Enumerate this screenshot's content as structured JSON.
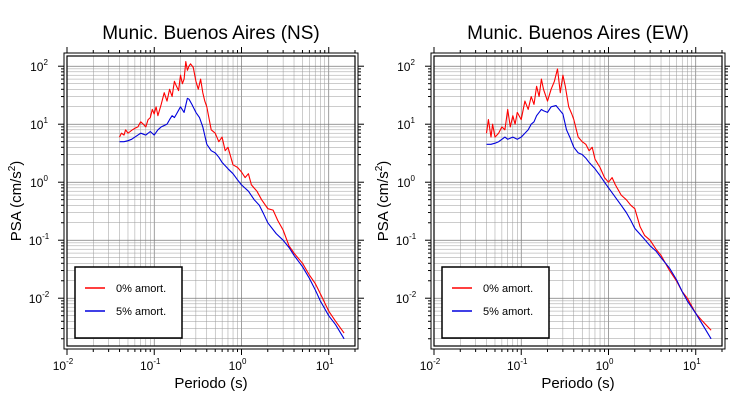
{
  "chart_data": [
    {
      "type": "line",
      "title": "Munic. Buenos Aires (NS)",
      "xlabel": "Periodo (s)",
      "ylabel": "PSA (cm/s",
      "ylabel_sup": "2",
      "ylabel_close": ")",
      "xscale": "log",
      "yscale": "log",
      "xlim": [
        0.01,
        20
      ],
      "ylim": [
        0.0015,
        150
      ],
      "x_ticks": [
        {
          "base": "10",
          "exp": "-2"
        },
        {
          "base": "10",
          "exp": "-1"
        },
        {
          "base": "10",
          "exp": "0"
        },
        {
          "base": "10",
          "exp": "1"
        }
      ],
      "y_ticks": [
        {
          "base": "10",
          "exp": "-2"
        },
        {
          "base": "10",
          "exp": "-1"
        },
        {
          "base": "10",
          "exp": "0"
        },
        {
          "base": "10",
          "exp": "1"
        },
        {
          "base": "10",
          "exp": "2"
        }
      ],
      "grid": true,
      "legend_position": "bottom-left",
      "series": [
        {
          "name": "0% amort.",
          "color": "#ff0000",
          "x": [
            0.04,
            0.042,
            0.045,
            0.047,
            0.05,
            0.053,
            0.056,
            0.06,
            0.065,
            0.07,
            0.075,
            0.08,
            0.085,
            0.09,
            0.095,
            0.1,
            0.105,
            0.11,
            0.12,
            0.13,
            0.14,
            0.15,
            0.16,
            0.17,
            0.18,
            0.19,
            0.2,
            0.21,
            0.22,
            0.23,
            0.24,
            0.25,
            0.26,
            0.28,
            0.3,
            0.32,
            0.34,
            0.36,
            0.38,
            0.4,
            0.45,
            0.5,
            0.55,
            0.6,
            0.65,
            0.7,
            0.8,
            0.9,
            1.0,
            1.1,
            1.2,
            1.3,
            1.5,
            1.7,
            2.0,
            2.3,
            2.6,
            3.0,
            3.5,
            4.0,
            5.0,
            6.0,
            7.0,
            8.0,
            10.0,
            12.0,
            15.0
          ],
          "y": [
            6,
            7,
            6.5,
            8,
            7,
            7.5,
            8,
            8.5,
            9,
            11,
            10,
            9,
            12,
            13,
            18,
            15,
            20,
            14,
            22,
            35,
            25,
            40,
            30,
            55,
            45,
            38,
            70,
            50,
            60,
            120,
            85,
            100,
            110,
            95,
            55,
            40,
            60,
            35,
            25,
            20,
            8,
            7,
            5,
            6,
            3.5,
            4,
            2,
            1.8,
            1.5,
            1.2,
            1.4,
            0.9,
            0.7,
            0.5,
            0.35,
            0.33,
            0.22,
            0.15,
            0.08,
            0.06,
            0.04,
            0.025,
            0.018,
            0.012,
            0.006,
            0.004,
            0.0025
          ]
        },
        {
          "name": "5% amort.",
          "color": "#0000dd",
          "x": [
            0.04,
            0.045,
            0.05,
            0.055,
            0.06,
            0.065,
            0.07,
            0.08,
            0.09,
            0.1,
            0.11,
            0.12,
            0.13,
            0.14,
            0.15,
            0.16,
            0.17,
            0.18,
            0.2,
            0.22,
            0.24,
            0.25,
            0.27,
            0.3,
            0.33,
            0.36,
            0.4,
            0.45,
            0.5,
            0.55,
            0.6,
            0.7,
            0.8,
            0.9,
            1.0,
            1.2,
            1.4,
            1.6,
            1.8,
            2.0,
            2.5,
            3.0,
            3.5,
            4.0,
            5.0,
            6.0,
            7.0,
            8.0,
            10.0,
            12.0,
            15.0
          ],
          "y": [
            5,
            5,
            5.2,
            5.5,
            6,
            6.5,
            7,
            6.5,
            7.5,
            6.5,
            8,
            9,
            9.5,
            10,
            12,
            14,
            13,
            15,
            20,
            16,
            28,
            27,
            22,
            16,
            13,
            9,
            4.5,
            3.5,
            3.2,
            2.7,
            2.2,
            1.7,
            1.4,
            1.1,
            0.9,
            0.7,
            0.5,
            0.4,
            0.28,
            0.2,
            0.13,
            0.1,
            0.075,
            0.055,
            0.035,
            0.022,
            0.014,
            0.009,
            0.005,
            0.0035,
            0.002
          ]
        }
      ]
    },
    {
      "type": "line",
      "title": "Munic. Buenos Aires (EW)",
      "xlabel": "Periodo (s)",
      "ylabel": "PSA (cm/s",
      "ylabel_sup": "2",
      "ylabel_close": ")",
      "xscale": "log",
      "yscale": "log",
      "xlim": [
        0.01,
        20
      ],
      "ylim": [
        0.0015,
        150
      ],
      "x_ticks": [
        {
          "base": "10",
          "exp": "-2"
        },
        {
          "base": "10",
          "exp": "-1"
        },
        {
          "base": "10",
          "exp": "0"
        },
        {
          "base": "10",
          "exp": "1"
        }
      ],
      "y_ticks": [
        {
          "base": "10",
          "exp": "-2"
        },
        {
          "base": "10",
          "exp": "-1"
        },
        {
          "base": "10",
          "exp": "0"
        },
        {
          "base": "10",
          "exp": "1"
        },
        {
          "base": "10",
          "exp": "2"
        }
      ],
      "grid": true,
      "legend_position": "bottom-left",
      "series": [
        {
          "name": "0% amort.",
          "color": "#ff0000",
          "x": [
            0.04,
            0.042,
            0.045,
            0.047,
            0.05,
            0.055,
            0.06,
            0.065,
            0.07,
            0.075,
            0.08,
            0.085,
            0.09,
            0.1,
            0.11,
            0.12,
            0.13,
            0.14,
            0.15,
            0.16,
            0.17,
            0.18,
            0.2,
            0.22,
            0.24,
            0.26,
            0.28,
            0.3,
            0.32,
            0.35,
            0.38,
            0.4,
            0.45,
            0.5,
            0.55,
            0.6,
            0.65,
            0.7,
            0.8,
            0.9,
            1.0,
            1.1,
            1.2,
            1.4,
            1.6,
            1.8,
            2.0,
            2.3,
            2.6,
            3.0,
            3.5,
            4.0,
            5.0,
            6.0,
            7.0,
            8.0,
            10.0,
            12.0,
            15.0
          ],
          "y": [
            7,
            12,
            6,
            10,
            6,
            7,
            9,
            8,
            18,
            9,
            14,
            10,
            16,
            12,
            25,
            18,
            30,
            22,
            45,
            30,
            60,
            40,
            25,
            40,
            55,
            90,
            35,
            70,
            45,
            20,
            15,
            12,
            6,
            5,
            4.5,
            3.5,
            4,
            2.5,
            1.8,
            1.2,
            1.0,
            1.2,
            0.9,
            0.6,
            0.5,
            0.4,
            0.35,
            0.17,
            0.12,
            0.1,
            0.07,
            0.055,
            0.03,
            0.02,
            0.013,
            0.01,
            0.0055,
            0.004,
            0.0028
          ]
        },
        {
          "name": "5% amort.",
          "color": "#0000dd",
          "x": [
            0.04,
            0.045,
            0.05,
            0.055,
            0.06,
            0.065,
            0.07,
            0.08,
            0.09,
            0.1,
            0.11,
            0.12,
            0.13,
            0.14,
            0.15,
            0.16,
            0.17,
            0.18,
            0.2,
            0.22,
            0.25,
            0.28,
            0.3,
            0.33,
            0.36,
            0.4,
            0.45,
            0.5,
            0.55,
            0.6,
            0.7,
            0.8,
            0.9,
            1.0,
            1.2,
            1.4,
            1.6,
            1.8,
            2.0,
            2.5,
            3.0,
            3.5,
            4.0,
            5.0,
            6.0,
            7.0,
            8.0,
            10.0,
            12.0,
            15.0
          ],
          "y": [
            4.5,
            4.5,
            4.7,
            5,
            5.5,
            6,
            5.5,
            6,
            5.5,
            6,
            7,
            8,
            10,
            11,
            14,
            16,
            18,
            17,
            16,
            20,
            21,
            17,
            15,
            8,
            6,
            4,
            3.2,
            3.0,
            2.6,
            2.2,
            1.7,
            1.3,
            1.0,
            0.8,
            0.55,
            0.4,
            0.3,
            0.22,
            0.16,
            0.11,
            0.08,
            0.065,
            0.05,
            0.033,
            0.021,
            0.013,
            0.009,
            0.0055,
            0.0035,
            0.002
          ]
        }
      ]
    }
  ]
}
